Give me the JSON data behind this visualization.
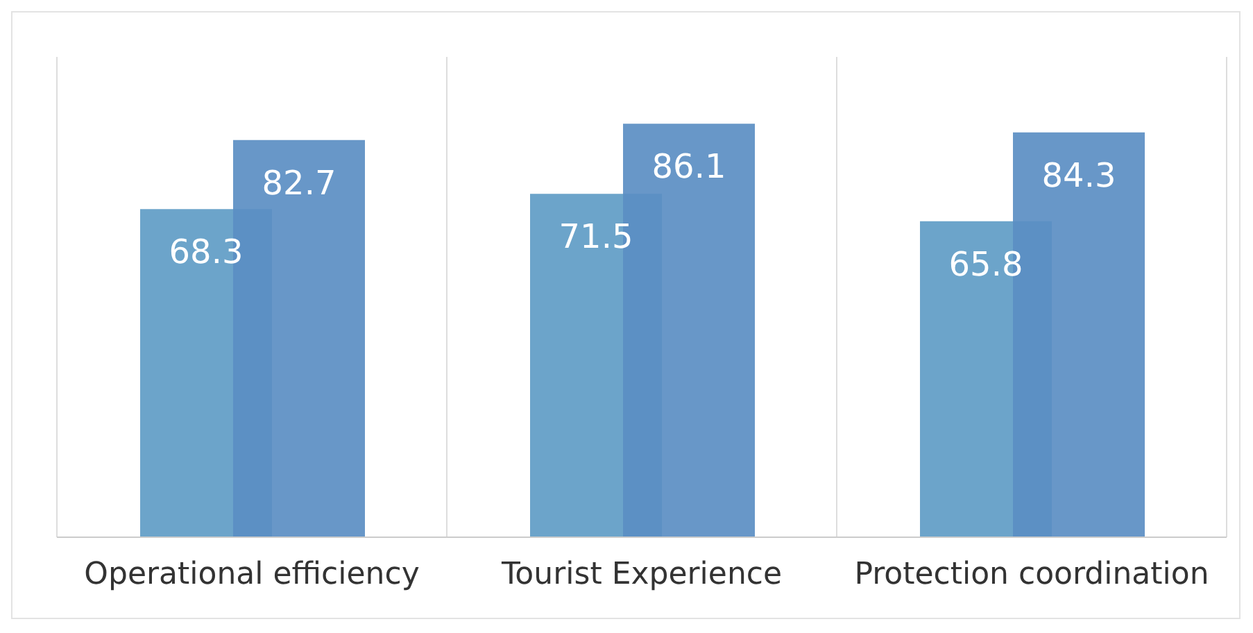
{
  "chart_data": {
    "type": "bar",
    "categories": [
      "Operational efficiency",
      "Tourist Experience",
      "Protection coordination"
    ],
    "series": [
      {
        "color": "#5f9cc6",
        "values": [
          68.3,
          71.5,
          65.8
        ]
      },
      {
        "color": "#5b8ec3",
        "values": [
          82.7,
          86.1,
          84.3
        ]
      }
    ],
    "ylim": [
      0,
      100
    ],
    "tick_labels": "x",
    "grid": "x",
    "data_labels": true
  }
}
